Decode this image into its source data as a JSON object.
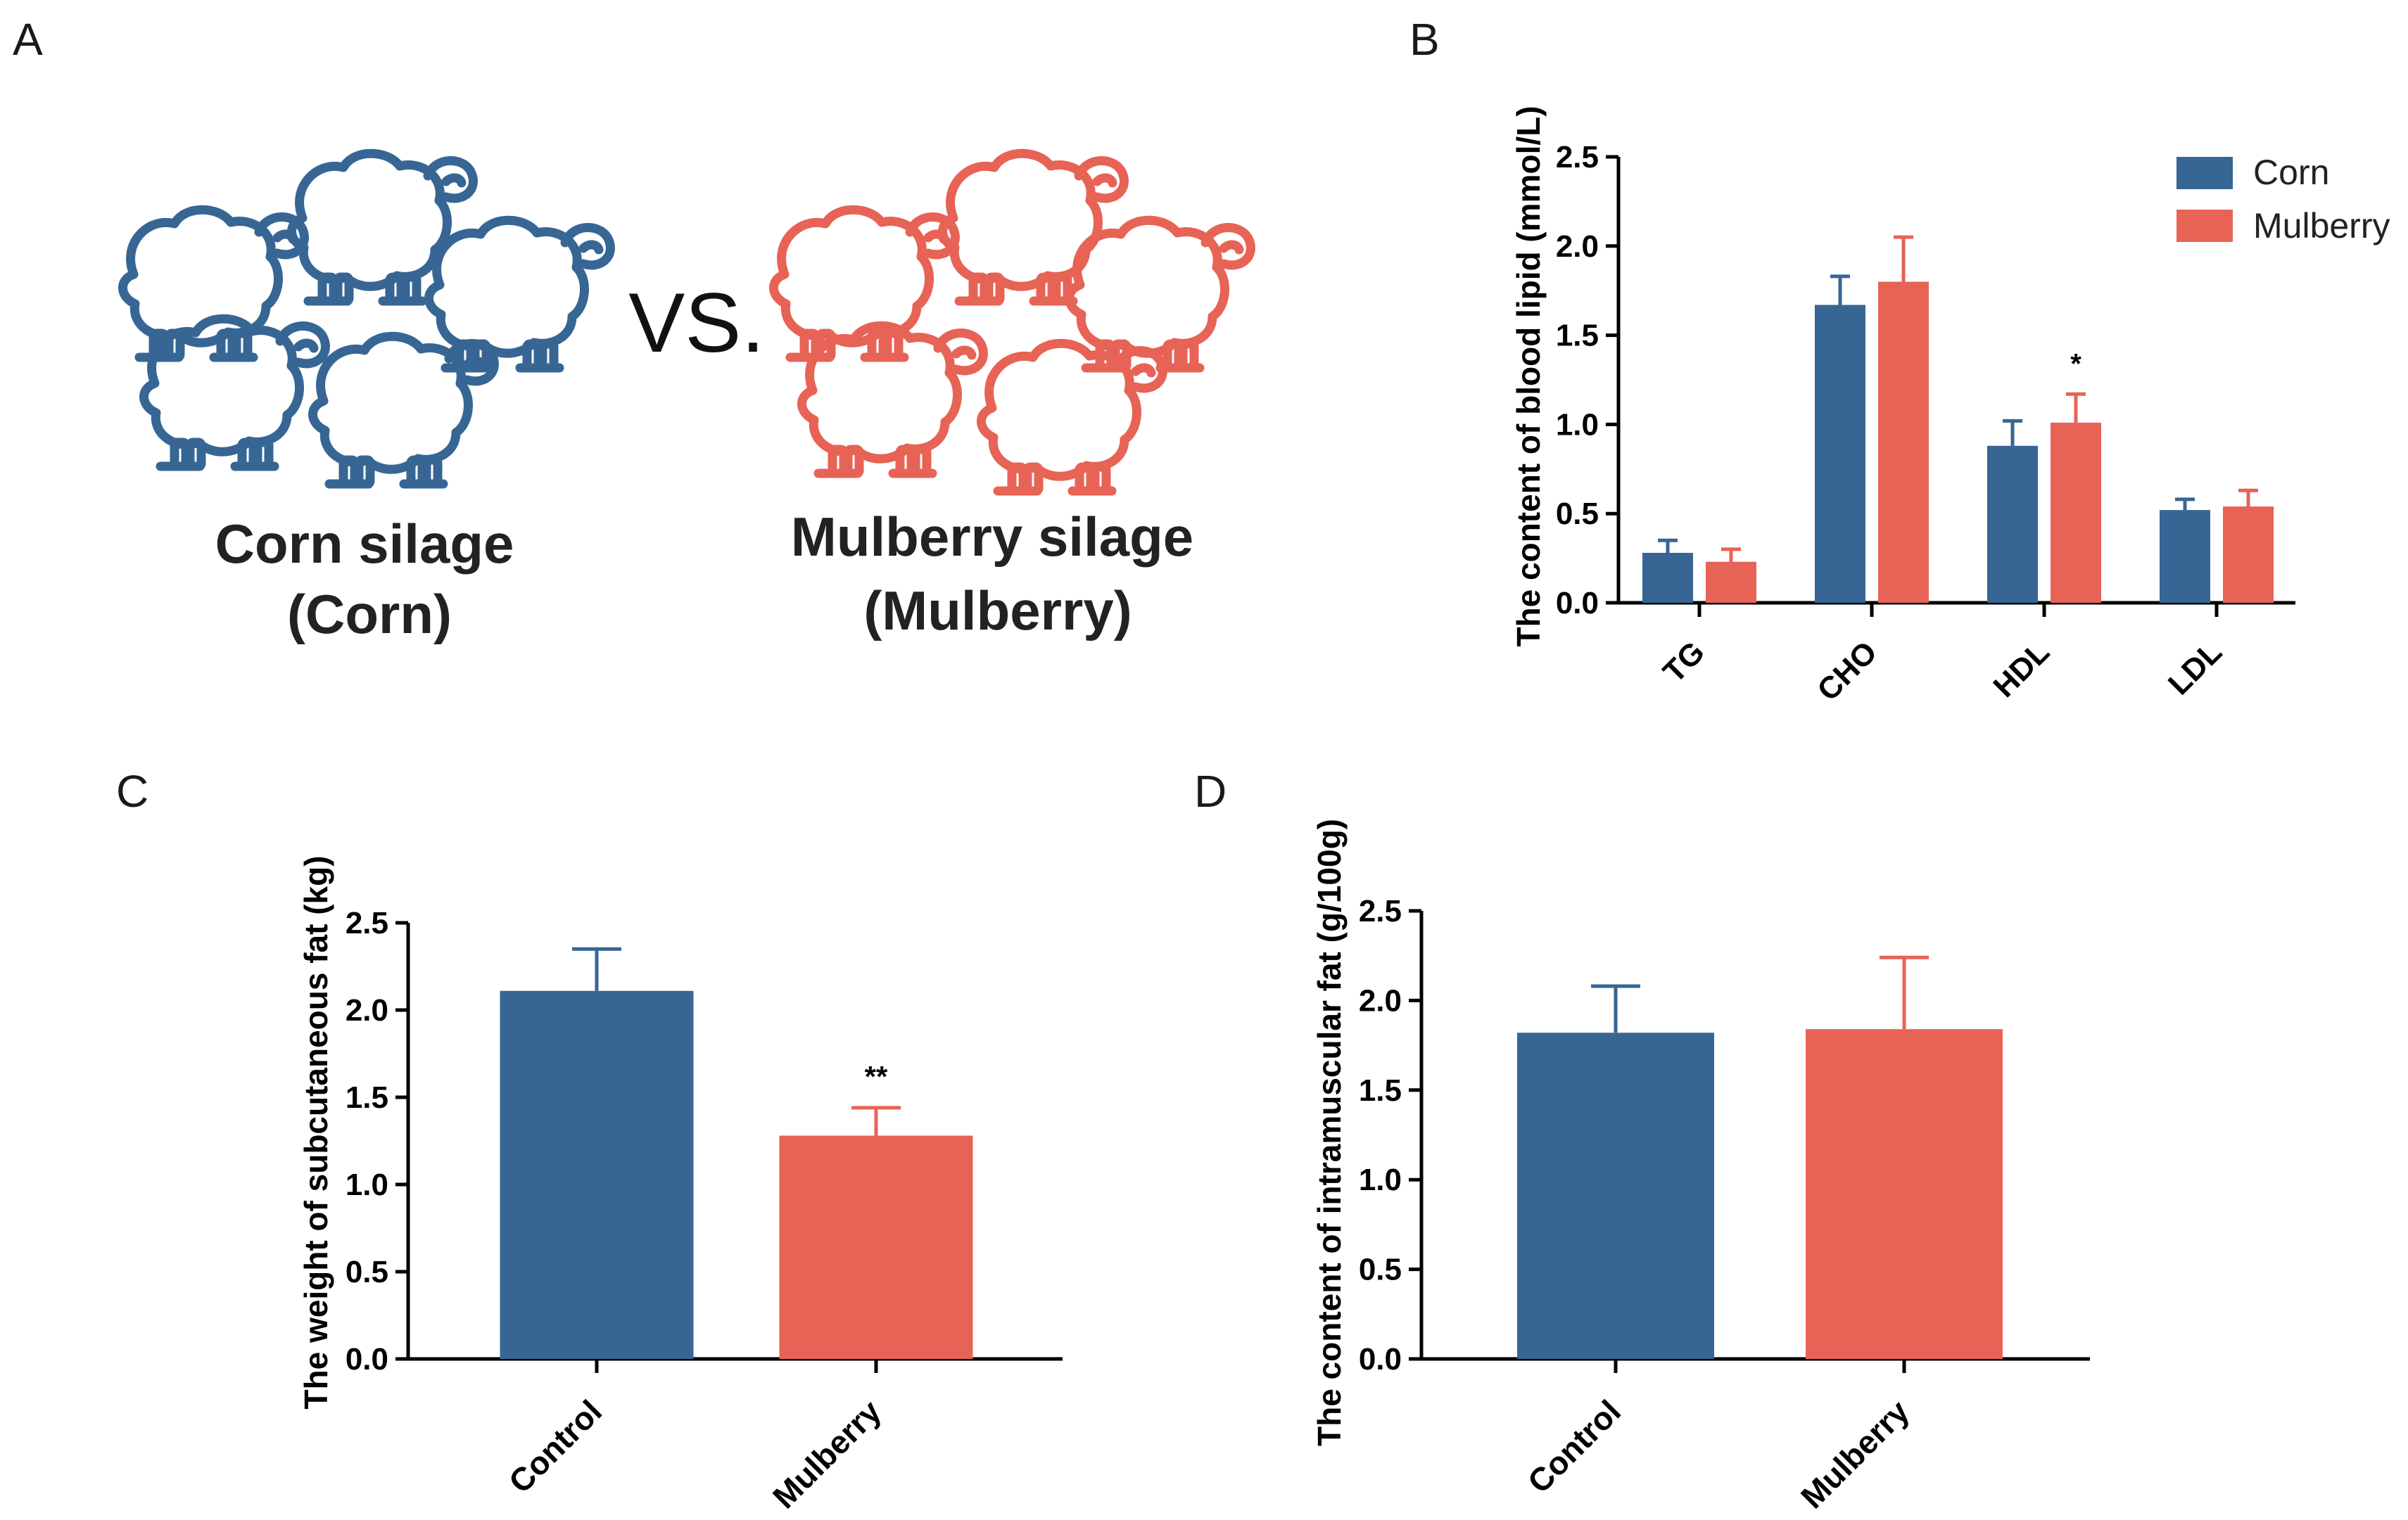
{
  "colors": {
    "corn": "#376694",
    "mulberry": "#E76356",
    "axis": "#000000"
  },
  "panel_labels": {
    "a": "A",
    "b": "B",
    "c": "C",
    "d": "D"
  },
  "panel_a": {
    "vs_label": "VS.",
    "corn_label_line1": "Corn silage",
    "corn_label_line2": "(Corn)",
    "mulberry_label_line1": "Mulberry silage",
    "mulberry_label_line2": "(Mulberry)",
    "icon_name": "sheep-icon"
  },
  "chart_data": [
    {
      "panel": "B",
      "type": "bar",
      "title": "",
      "categories": [
        "TG",
        "CHO",
        "HDL",
        "LDL"
      ],
      "series": [
        {
          "name": "Corn",
          "color_key": "corn",
          "values": [
            0.28,
            1.67,
            0.88,
            0.52
          ],
          "errors": [
            0.07,
            0.16,
            0.14,
            0.06
          ]
        },
        {
          "name": "Mulberry",
          "color_key": "mulberry",
          "values": [
            0.23,
            1.8,
            1.01,
            0.54
          ],
          "errors": [
            0.07,
            0.25,
            0.16,
            0.09
          ]
        }
      ],
      "significance": [
        {
          "series": 1,
          "category": 2,
          "label": "*"
        }
      ],
      "xlabel": "",
      "ylabel": "The content of blood lipid (mmol/L)",
      "ylim": [
        0,
        2.5
      ],
      "yticks": [
        "0.0",
        "0.5",
        "1.0",
        "1.5",
        "2.0",
        "2.5"
      ],
      "legend": "top-right"
    },
    {
      "panel": "C",
      "type": "bar",
      "title": "",
      "categories": [
        "Control",
        "Mulberry"
      ],
      "values": [
        2.11,
        1.28
      ],
      "errors": [
        0.24,
        0.16
      ],
      "color_keys": [
        "corn",
        "mulberry"
      ],
      "significance": [
        {
          "category": 1,
          "label": "**"
        }
      ],
      "xlabel": "",
      "ylabel": "The weight of  subcutaneous fat (kg)",
      "ylim": [
        0,
        2.5
      ],
      "yticks": [
        "0.0",
        "0.5",
        "1.0",
        "1.5",
        "2.0",
        "2.5"
      ]
    },
    {
      "panel": "D",
      "type": "bar",
      "title": "",
      "categories": [
        "Control",
        "Mulberry"
      ],
      "values": [
        1.82,
        1.84
      ],
      "errors": [
        0.26,
        0.4
      ],
      "color_keys": [
        "corn",
        "mulberry"
      ],
      "significance": [],
      "xlabel": "",
      "ylabel": "The content of intramuscular fat (g/100g)",
      "ylim": [
        0,
        2.5
      ],
      "yticks": [
        "0.0",
        "0.5",
        "1.0",
        "1.5",
        "2.0",
        "2.5"
      ]
    }
  ]
}
